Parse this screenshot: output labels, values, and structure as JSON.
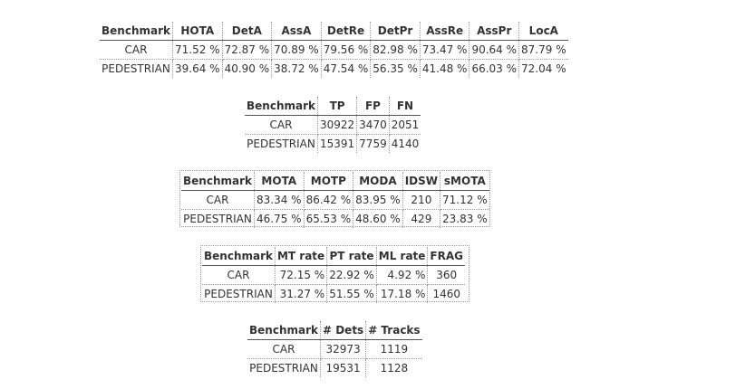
{
  "tables": [
    {
      "headers": [
        "Benchmark",
        "HOTA",
        "DetA",
        "AssA",
        "DetRe",
        "DetPr",
        "AssRe",
        "AssPr",
        "LocA"
      ],
      "rows": [
        [
          "CAR",
          "71.52 %",
          "72.87 %",
          "70.89 %",
          "79.56 %",
          "82.98 %",
          "73.47 %",
          "90.64 %",
          "87.79 %"
        ],
        [
          "PEDESTRIAN",
          "39.64 %",
          "40.90 %",
          "38.72 %",
          "47.54 %",
          "56.35 %",
          "41.48 %",
          "66.03 %",
          "72.04 %"
        ]
      ]
    },
    {
      "headers": [
        "Benchmark",
        "TP",
        "FP",
        "FN"
      ],
      "rows": [
        [
          "CAR",
          "30922",
          "3470",
          "2051"
        ],
        [
          "PEDESTRIAN",
          "15391",
          "7759",
          "4140"
        ]
      ]
    },
    {
      "headers": [
        "Benchmark",
        "MOTA",
        "MOTP",
        "MODA",
        "IDSW",
        "sMOTA"
      ],
      "rows": [
        [
          "CAR",
          "83.34 %",
          "86.42 %",
          "83.95 %",
          "210",
          "71.12 %"
        ],
        [
          "PEDESTRIAN",
          "46.75 %",
          "65.53 %",
          "48.60 %",
          "429",
          "23.83 %"
        ]
      ]
    },
    {
      "headers": [
        "Benchmark",
        "MT rate",
        "PT rate",
        "ML rate",
        "FRAG"
      ],
      "rows": [
        [
          "CAR",
          "72.15 %",
          "22.92 %",
          "4.92 %",
          "360"
        ],
        [
          "PEDESTRIAN",
          "31.27 %",
          "51.55 %",
          "17.18 %",
          "1460"
        ]
      ]
    },
    {
      "headers": [
        "Benchmark",
        "# Dets",
        "# Tracks"
      ],
      "rows": [
        [
          "CAR",
          "32973",
          "1119"
        ],
        [
          "PEDESTRIAN",
          "19531",
          "1128"
        ]
      ]
    }
  ]
}
